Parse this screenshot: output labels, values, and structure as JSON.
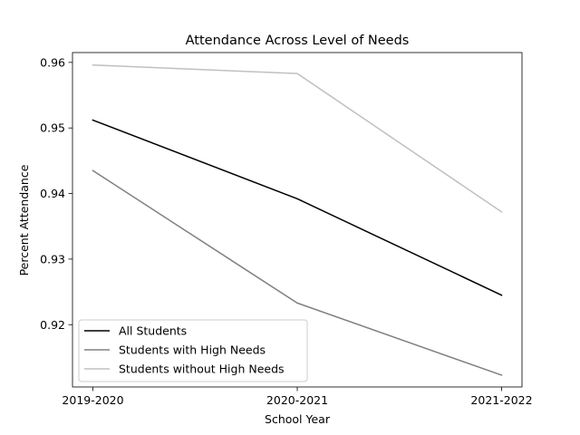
{
  "chart_data": {
    "type": "line",
    "title": "Attendance Across Level of Needs",
    "xlabel": "School Year",
    "ylabel": "Percent Attendance",
    "categories": [
      "2019-2020",
      "2020-2021",
      "2021-2022"
    ],
    "ylim": [
      0.9105,
      0.9615
    ],
    "yticks": [
      0.92,
      0.93,
      0.94,
      0.95,
      0.96
    ],
    "ytick_labels": [
      "0.92",
      "0.93",
      "0.94",
      "0.95",
      "0.96"
    ],
    "grid": false,
    "legend_position": "lower-left",
    "series": [
      {
        "name": "All Students",
        "values": [
          0.9512,
          0.9392,
          0.9245
        ],
        "color": "#000000"
      },
      {
        "name": "Students with High Needs",
        "values": [
          0.9435,
          0.9233,
          0.9123
        ],
        "color": "#808080"
      },
      {
        "name": "Students without High Needs",
        "values": [
          0.9596,
          0.9583,
          0.9372
        ],
        "color": "#c0c0c0"
      }
    ]
  }
}
